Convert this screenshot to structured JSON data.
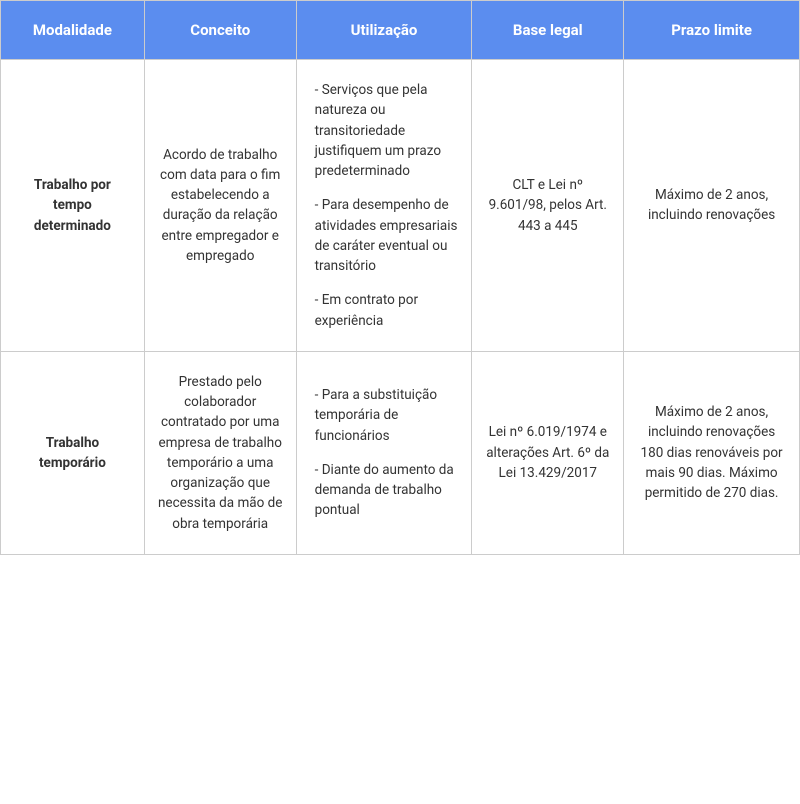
{
  "table": {
    "type": "table",
    "header_bg": "#5b8def",
    "header_text_color": "#ffffff",
    "border_color": "#cccccc",
    "body_text_color": "#333333",
    "font_size_header": 15,
    "font_size_body": 13.5,
    "columns": [
      {
        "label": "Modalidade",
        "width_pct": 18
      },
      {
        "label": "Conceito",
        "width_pct": 19
      },
      {
        "label": "Utilização",
        "width_pct": 22
      },
      {
        "label": "Base legal",
        "width_pct": 19
      },
      {
        "label": "Prazo limite",
        "width_pct": 22
      }
    ],
    "rows": [
      {
        "modalidade": "Trabalho por tempo determinado",
        "conceito": "Acordo de trabalho com data para o fim estabelecendo a duração da relação entre empregador e empregado",
        "utilizacao": [
          "-  Serviços que pela natureza ou transitoriedade justifiquem um prazo predeterminado",
          "-  Para desempenho de atividades empresariais de caráter eventual ou transitório",
          "-  Em contrato por experiência"
        ],
        "base_legal": "CLT e Lei nº 9.601/98, pelos Art. 443 a 445",
        "prazo_limite": "Máximo de 2 anos, incluindo renovações"
      },
      {
        "modalidade": "Trabalho temporário",
        "conceito": "Prestado pelo colaborador contratado por uma empresa de trabalho temporário a uma organização que necessita da mão de obra temporária",
        "utilizacao": [
          "-  Para a substituição temporária de funcionários",
          "-  Diante do aumento da demanda de trabalho pontual"
        ],
        "base_legal": "Lei nº 6.019/1974 e alterações Art. 6º da Lei 13.429/2017",
        "prazo_limite": "Máximo de 2 anos, incluindo renovações 180 dias renováveis por mais 90 dias.  Máximo permitido de 270 dias."
      }
    ]
  }
}
